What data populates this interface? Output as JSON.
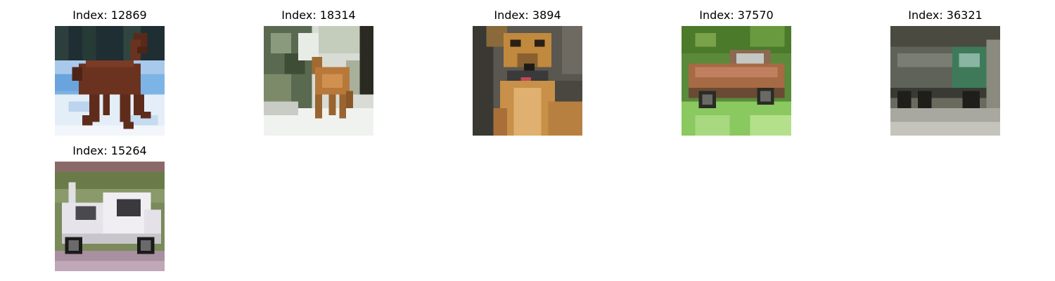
{
  "grid": {
    "tiles": [
      {
        "title": "Index: 12869",
        "content": "horse"
      },
      {
        "title": "Index: 18314",
        "content": "deer"
      },
      {
        "title": "Index: 3894",
        "content": "dog"
      },
      {
        "title": "Index: 37570",
        "content": "car"
      },
      {
        "title": "Index: 36321",
        "content": "truck"
      },
      {
        "title": "Index: 15264",
        "content": "truck"
      }
    ]
  }
}
